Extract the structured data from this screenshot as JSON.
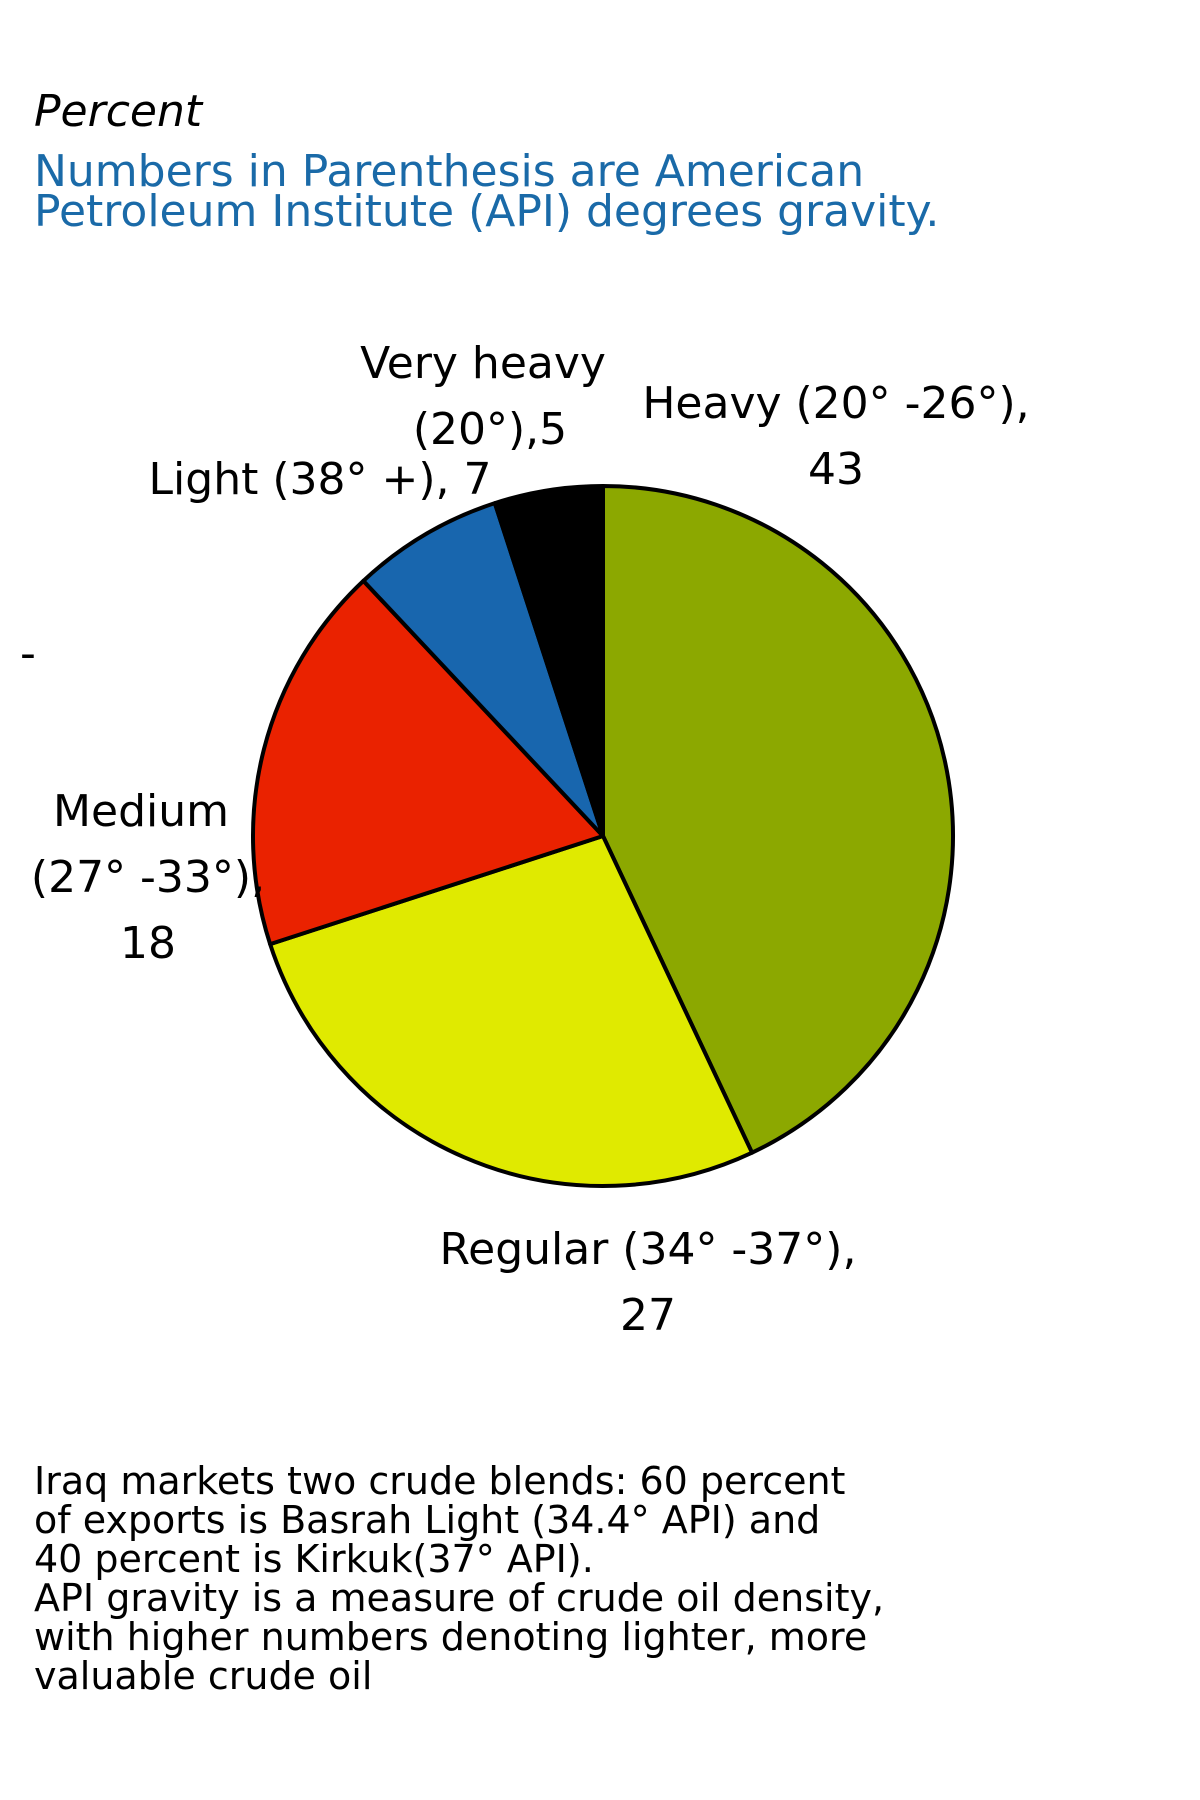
{
  "unit_label": "Percent",
  "subtitle": "Numbers in Parenthesis are American\nPetroleum Institute (API) degrees gravity.",
  "note": "Iraq markets two crude blends: 60 percent\nof exports is Basrah Light (34.4° API) and\n40 percent is Kirkuk(37° API).\nAPI gravity is a measure of crude oil density,\nwith higher numbers denoting lighter, more\nvaluable crude oil",
  "stray_mark": "-",
  "colors": {
    "subtitle": "#1a6aa8",
    "outline": "#000000"
  },
  "chart_data": {
    "type": "pie",
    "title": "",
    "start_angle_deg": 0,
    "direction": "clockwise",
    "slices": [
      {
        "label": "Heavy (20° -26°),",
        "value_text": "43",
        "value": 43,
        "color": "#8ca800"
      },
      {
        "label": "Regular (34° -37°),",
        "value_text": "27",
        "value": 27,
        "color": "#e0ea00"
      },
      {
        "label": "Medium\n(27° -33°),",
        "value_text": "18",
        "value": 18,
        "color": "#ea2200"
      },
      {
        "label": "Light (38° +), 7",
        "value_text": "",
        "value": 7,
        "color": "#1866ae"
      },
      {
        "label": "Very heavy\n(20°),5",
        "value_text": "",
        "value": 5,
        "color": "#000000"
      }
    ]
  }
}
